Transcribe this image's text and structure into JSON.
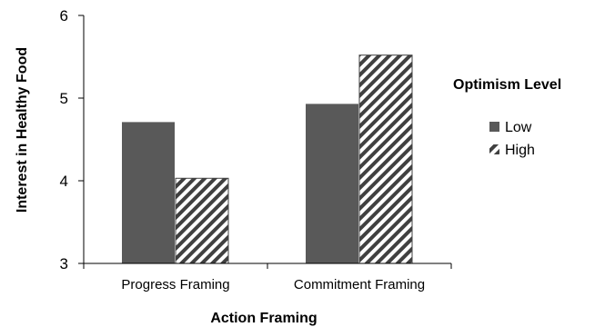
{
  "chart_data": {
    "type": "bar",
    "categories": [
      "Progress Framing",
      "Commitment Framing"
    ],
    "series": [
      {
        "name": "Low",
        "values": [
          4.71,
          4.93
        ],
        "fill": "#595959",
        "pattern": "solid"
      },
      {
        "name": "High",
        "values": [
          4.03,
          5.52
        ],
        "fill": "#ffffff",
        "pattern": "diagonal-stripes"
      }
    ],
    "xlabel": "Action Framing",
    "ylabel": "Interest in Healthy Food",
    "ylim": [
      3,
      6
    ],
    "yticks": [
      3,
      4,
      5,
      6
    ],
    "grid": false,
    "legend": {
      "title": "Optimism Level",
      "placement": "right"
    },
    "colors": {
      "axis": "#000000",
      "stripe": "#404040"
    }
  }
}
